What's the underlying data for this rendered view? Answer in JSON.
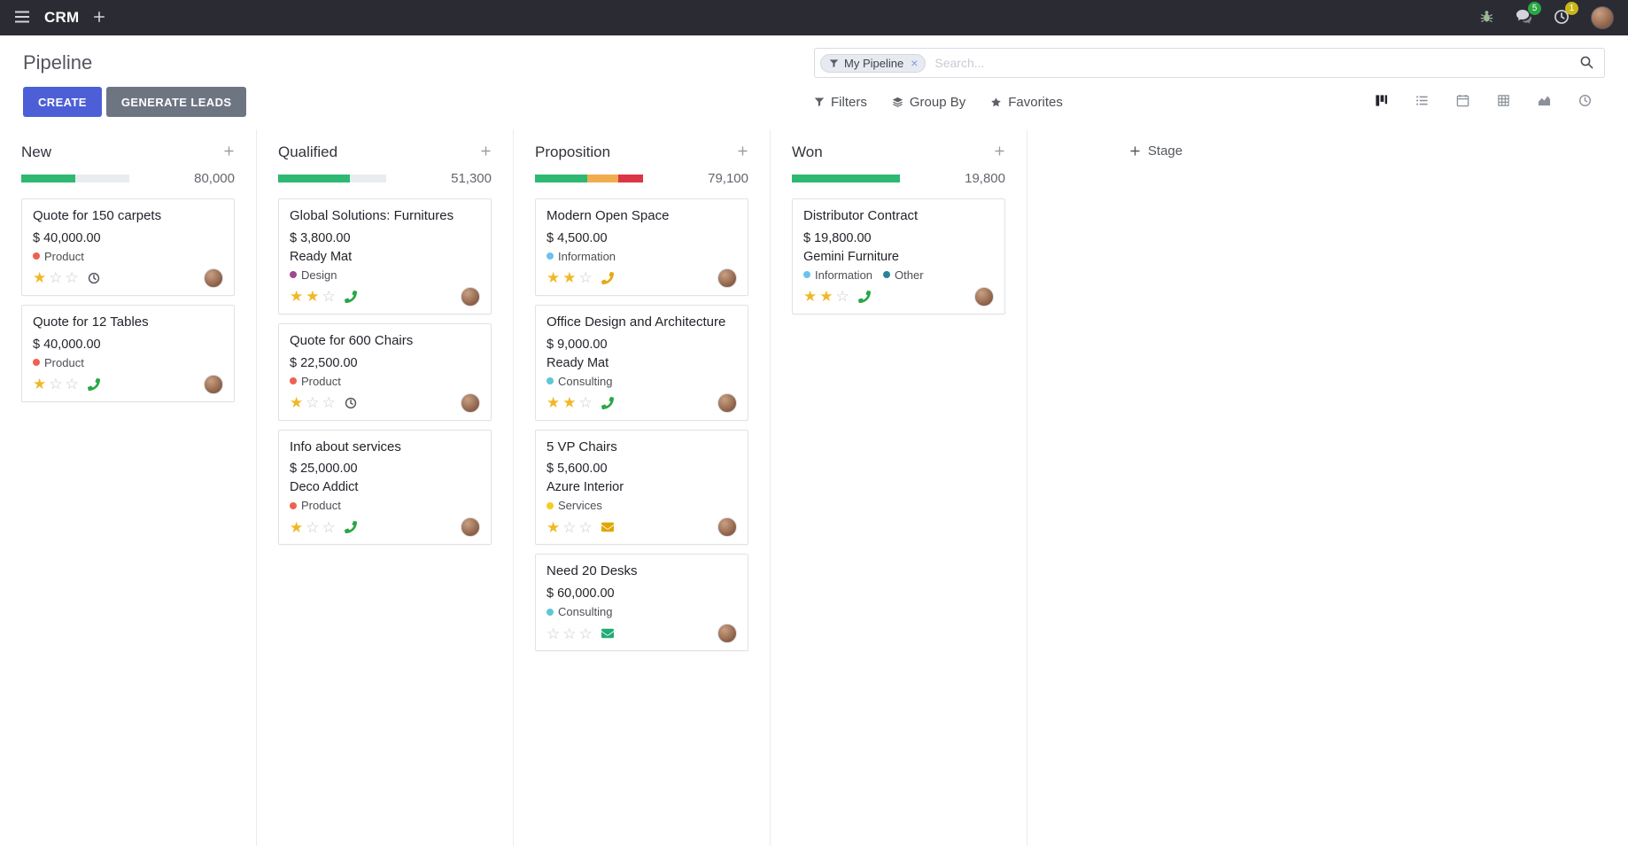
{
  "topbar": {
    "app_name": "CRM",
    "chat_badge": "5",
    "activity_badge": "1"
  },
  "control_panel": {
    "title": "Pipeline",
    "create_label": "CREATE",
    "generate_leads_label": "GENERATE LEADS",
    "search": {
      "facet": "My Pipeline",
      "placeholder": "Search...",
      "remove_label": "×"
    },
    "filters_label": "Filters",
    "groupby_label": "Group By",
    "favorites_label": "Favorites",
    "view_switcher": {
      "active": "kanban",
      "views": [
        "kanban",
        "list",
        "calendar",
        "pivot",
        "graph",
        "activity"
      ]
    }
  },
  "colors": {
    "topbar_bg": "#2b2b33",
    "primary_button": "#4d5fd6",
    "secondary_button": "#6e7582",
    "star_gold": "#efb826",
    "progress_green": "#2eb872",
    "progress_yellow": "#f0ad4e",
    "progress_red": "#dc3545",
    "badge_green": "#28a745"
  },
  "kanban": {
    "add_stage_label": "Stage",
    "columns": [
      {
        "name": "New",
        "counter": "80,000",
        "progress": [
          {
            "color": "#2eb872",
            "pct": 50
          }
        ],
        "cards": [
          {
            "title": "Quote for 150 carpets",
            "amount": "$ 40,000.00",
            "partner": "",
            "tags": [
              {
                "label": "Product",
                "color": "#f06050"
              }
            ],
            "stars": 1,
            "activity": {
              "icon": "clock",
              "color": "#55585f"
            }
          },
          {
            "title": "Quote for 12 Tables",
            "amount": "$ 40,000.00",
            "partner": "",
            "tags": [
              {
                "label": "Product",
                "color": "#f06050"
              }
            ],
            "stars": 1,
            "activity": {
              "icon": "phone",
              "color": "#28a745"
            }
          }
        ]
      },
      {
        "name": "Qualified",
        "counter": "51,300",
        "progress": [
          {
            "color": "#2eb872",
            "pct": 66
          }
        ],
        "cards": [
          {
            "title": "Global Solutions: Furnitures",
            "amount": "$ 3,800.00",
            "partner": "Ready Mat",
            "tags": [
              {
                "label": "Design",
                "color": "#a1488e"
              }
            ],
            "stars": 2,
            "activity": {
              "icon": "phone",
              "color": "#28a745"
            }
          },
          {
            "title": "Quote for 600 Chairs",
            "amount": "$ 22,500.00",
            "partner": "",
            "tags": [
              {
                "label": "Product",
                "color": "#f06050"
              }
            ],
            "stars": 1,
            "activity": {
              "icon": "clock",
              "color": "#55585f"
            }
          },
          {
            "title": "Info about services",
            "amount": "$ 25,000.00",
            "partner": "Deco Addict",
            "tags": [
              {
                "label": "Product",
                "color": "#f06050"
              }
            ],
            "stars": 1,
            "activity": {
              "icon": "phone",
              "color": "#28a745"
            }
          }
        ]
      },
      {
        "name": "Proposition",
        "counter": "79,100",
        "progress": [
          {
            "color": "#2eb872",
            "pct": 48
          },
          {
            "color": "#f0ad4e",
            "pct": 29
          },
          {
            "color": "#dc3545",
            "pct": 23
          }
        ],
        "cards": [
          {
            "title": "Modern Open Space",
            "amount": "$ 4,500.00",
            "partner": "",
            "tags": [
              {
                "label": "Information",
                "color": "#6cc1ed"
              }
            ],
            "stars": 2,
            "activity": {
              "icon": "phone",
              "color": "#e3aa12"
            }
          },
          {
            "title": "Office Design and Architecture",
            "amount": "$ 9,000.00",
            "partner": "Ready Mat",
            "tags": [
              {
                "label": "Consulting",
                "color": "#5fc7d5"
              }
            ],
            "stars": 2,
            "activity": {
              "icon": "phone",
              "color": "#28a745"
            }
          },
          {
            "title": "5 VP Chairs",
            "amount": "$ 5,600.00",
            "partner": "Azure Interior",
            "tags": [
              {
                "label": "Services",
                "color": "#f7cd1f"
              }
            ],
            "stars": 1,
            "activity": {
              "icon": "mail",
              "color": "#e2a600"
            }
          },
          {
            "title": "Need 20 Desks",
            "amount": "$ 60,000.00",
            "partner": "",
            "tags": [
              {
                "label": "Consulting",
                "color": "#5fc7d5"
              }
            ],
            "stars": 0,
            "activity": {
              "icon": "mail",
              "color": "#21ab77"
            }
          }
        ]
      },
      {
        "name": "Won",
        "counter": "19,800",
        "progress": [
          {
            "color": "#2eb872",
            "pct": 100
          }
        ],
        "cards": [
          {
            "title": "Distributor Contract",
            "amount": "$ 19,800.00",
            "partner": "Gemini Furniture",
            "tags": [
              {
                "label": "Information",
                "color": "#6cc1ed"
              },
              {
                "label": "Other",
                "color": "#2c8397"
              }
            ],
            "stars": 2,
            "activity": {
              "icon": "phone",
              "color": "#28a745"
            }
          }
        ]
      }
    ]
  }
}
